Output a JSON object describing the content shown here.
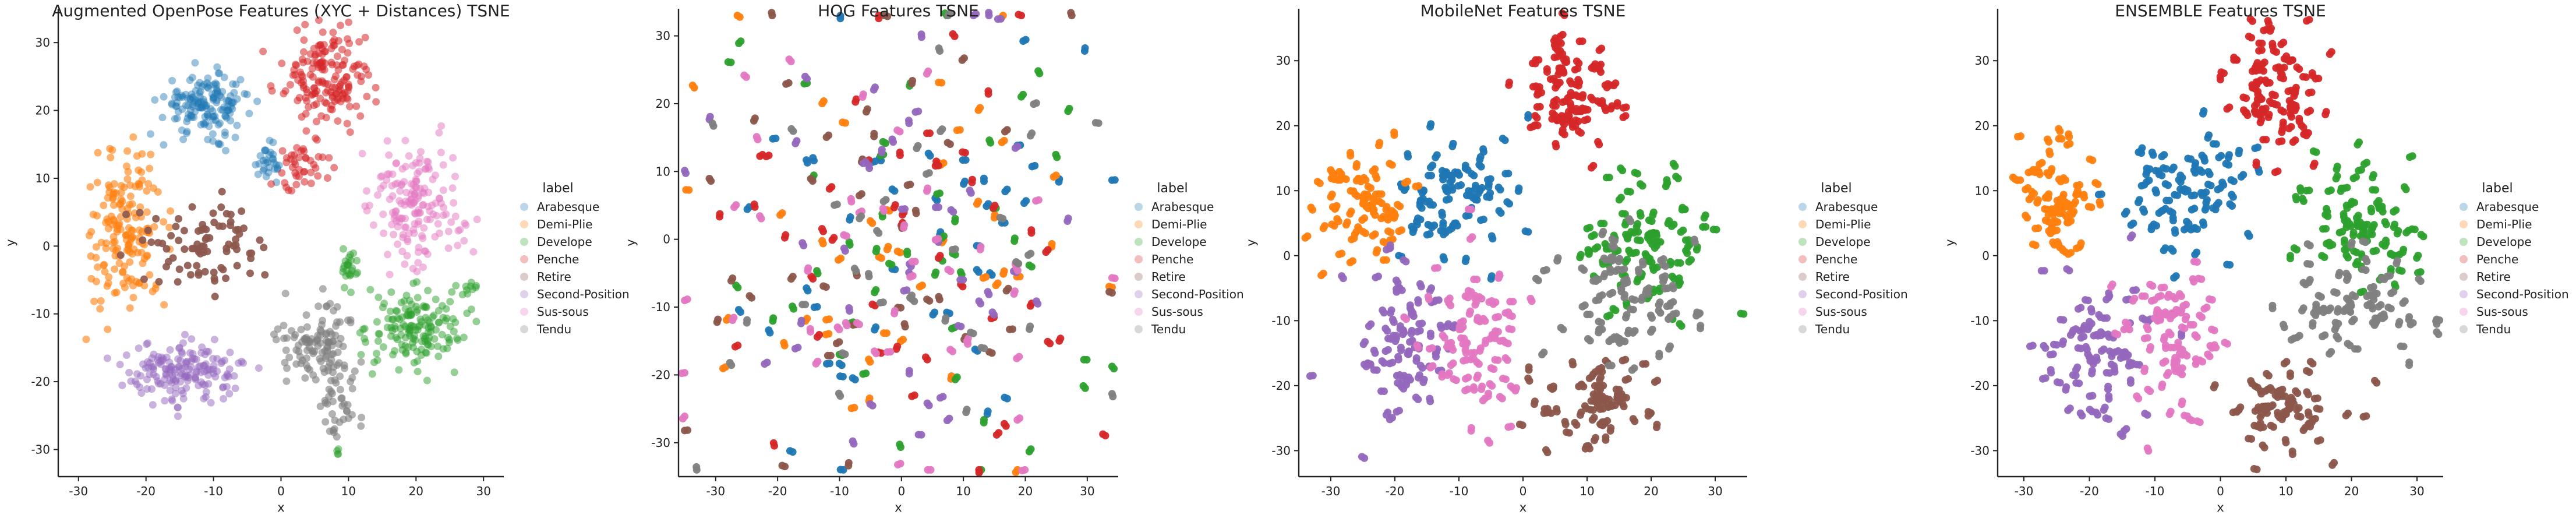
{
  "chart_data": [
    {
      "type": "scatter",
      "title": "Augmented OpenPose Features (XYC + Distances) TSNE",
      "xlabel": "x",
      "ylabel": "y",
      "xlim": [
        -33,
        33
      ],
      "ylim": [
        -34,
        35
      ],
      "xticks": [
        -30,
        -20,
        -10,
        0,
        10,
        20,
        30
      ],
      "yticks": [
        -30,
        -20,
        -10,
        0,
        10,
        20,
        30
      ],
      "legend_title": "label",
      "legend_position": "right",
      "series": [
        {
          "name": "Arabesque",
          "color": "#1f77b4",
          "alpha": 0.45,
          "clusters": [
            {
              "cx": -11,
              "cy": 21,
              "sx": 3.2,
              "sy": 2.2,
              "n": 160
            },
            {
              "cx": -2,
              "cy": 12,
              "sx": 0.8,
              "sy": 1.4,
              "n": 30
            }
          ]
        },
        {
          "name": "Demi-Plie",
          "color": "#ff7f0e",
          "alpha": 0.6,
          "clusters": [
            {
              "cx": -23,
              "cy": 2,
              "sx": 3.0,
              "sy": 5.5,
              "n": 170
            }
          ]
        },
        {
          "name": "Develope",
          "color": "#2ca02c",
          "alpha": 0.5,
          "clusters": [
            {
              "cx": 20,
              "cy": -12,
              "sx": 3.5,
              "sy": 3.0,
              "n": 160
            },
            {
              "cx": 10,
              "cy": -3,
              "sx": 0.7,
              "sy": 1.3,
              "n": 25
            },
            {
              "cx": 28,
              "cy": -6,
              "sx": 1.2,
              "sy": 0.5,
              "n": 8
            },
            {
              "cx": 8,
              "cy": -30.5,
              "sx": 0.5,
              "sy": 0.3,
              "n": 4
            }
          ]
        },
        {
          "name": "Penche",
          "color": "#d62728",
          "alpha": 0.55,
          "clusters": [
            {
              "cx": 7,
              "cy": 25,
              "sx": 3.3,
              "sy": 4.0,
              "n": 170
            },
            {
              "cx": 3,
              "cy": 12,
              "sx": 2.0,
              "sy": 2.0,
              "n": 40
            }
          ]
        },
        {
          "name": "Retire",
          "color": "#8c564b",
          "alpha": 0.9,
          "clusters": [
            {
              "cx": -11,
              "cy": 0,
              "sx": 4.0,
              "sy": 3.0,
              "n": 85
            }
          ]
        },
        {
          "name": "Second-Position",
          "color": "#9467bd",
          "alpha": 0.5,
          "clusters": [
            {
              "cx": -14,
              "cy": -18.5,
              "sx": 4.3,
              "sy": 2.2,
              "n": 170
            }
          ]
        },
        {
          "name": "Sus-sous",
          "color": "#e377c2",
          "alpha": 0.5,
          "clusters": [
            {
              "cx": 20,
              "cy": 6,
              "sx": 3.5,
              "sy": 4.5,
              "n": 170
            }
          ]
        },
        {
          "name": "Tendu",
          "color": "#7f7f7f",
          "alpha": 0.6,
          "clusters": [
            {
              "cx": 5,
              "cy": -14,
              "sx": 3.0,
              "sy": 3.0,
              "n": 110
            },
            {
              "cx": 9,
              "cy": -23,
              "sx": 1.5,
              "sy": 3.0,
              "n": 40
            }
          ]
        }
      ]
    },
    {
      "type": "scatter",
      "title": "HOG Features TSNE",
      "xlabel": "x",
      "ylabel": "y",
      "xlim": [
        -36,
        35
      ],
      "ylim": [
        -35,
        34
      ],
      "xticks": [
        -30,
        -20,
        -10,
        0,
        10,
        20,
        30
      ],
      "yticks": [
        -30,
        -20,
        -10,
        0,
        10,
        20,
        30
      ],
      "legend_title": "label",
      "legend_position": "right",
      "series": [
        {
          "name": "Arabesque",
          "color": "#1f77b4",
          "alpha": 0.95,
          "clusters": [
            {
              "cx": 0,
              "cy": 0,
              "sx": 15,
              "sy": 17,
              "n": 45
            }
          ]
        },
        {
          "name": "Demi-Plie",
          "color": "#ff7f0e",
          "alpha": 0.95,
          "clusters": [
            {
              "cx": 0,
              "cy": 0,
              "sx": 17,
              "sy": 17,
              "n": 45
            }
          ]
        },
        {
          "name": "Develope",
          "color": "#2ca02c",
          "alpha": 0.95,
          "clusters": [
            {
              "cx": 0,
              "cy": 0,
              "sx": 16,
              "sy": 17,
              "n": 45
            }
          ]
        },
        {
          "name": "Penche",
          "color": "#d62728",
          "alpha": 0.95,
          "clusters": [
            {
              "cx": 0,
              "cy": 0,
              "sx": 15,
              "sy": 17,
              "n": 45
            }
          ]
        },
        {
          "name": "Retire",
          "color": "#8c564b",
          "alpha": 0.95,
          "clusters": [
            {
              "cx": 0,
              "cy": 0,
              "sx": 16,
              "sy": 17,
              "n": 40
            }
          ]
        },
        {
          "name": "Second-Position",
          "color": "#9467bd",
          "alpha": 0.95,
          "clusters": [
            {
              "cx": 0,
              "cy": 0,
              "sx": 16,
              "sy": 17,
              "n": 45
            }
          ]
        },
        {
          "name": "Sus-sous",
          "color": "#e377c2",
          "alpha": 0.95,
          "clusters": [
            {
              "cx": 0,
              "cy": 0,
              "sx": 16,
              "sy": 17,
              "n": 45
            }
          ]
        },
        {
          "name": "Tendu",
          "color": "#7f7f7f",
          "alpha": 0.95,
          "clusters": [
            {
              "cx": 0,
              "cy": 0,
              "sx": 16,
              "sy": 17,
              "n": 35
            }
          ]
        }
      ]
    },
    {
      "type": "scatter",
      "title": "MobileNet Features TSNE",
      "xlabel": "x",
      "ylabel": "y",
      "xlim": [
        -35,
        35
      ],
      "ylim": [
        -34,
        38
      ],
      "xticks": [
        -30,
        -20,
        -10,
        0,
        10,
        20,
        30
      ],
      "yticks": [
        -30,
        -20,
        -10,
        0,
        10,
        20,
        30
      ],
      "legend_title": "label",
      "legend_position": "right",
      "series": [
        {
          "name": "Arabesque",
          "color": "#1f77b4",
          "alpha": 0.95,
          "clusters": [
            {
              "cx": -10,
              "cy": 10,
              "sx": 4.5,
              "sy": 5.0,
              "n": 75
            }
          ]
        },
        {
          "name": "Demi-Plie",
          "color": "#ff7f0e",
          "alpha": 0.95,
          "clusters": [
            {
              "cx": -25,
              "cy": 8,
              "sx": 3.5,
              "sy": 5.5,
              "n": 70
            }
          ]
        },
        {
          "name": "Develope",
          "color": "#2ca02c",
          "alpha": 0.95,
          "clusters": [
            {
              "cx": 20,
              "cy": 3,
              "sx": 5.0,
              "sy": 5.0,
              "n": 85
            }
          ]
        },
        {
          "name": "Penche",
          "color": "#d62728",
          "alpha": 0.95,
          "clusters": [
            {
              "cx": 7,
              "cy": 25,
              "sx": 3.5,
              "sy": 4.5,
              "n": 85
            }
          ]
        },
        {
          "name": "Retire",
          "color": "#8c564b",
          "alpha": 0.95,
          "clusters": [
            {
              "cx": 12,
              "cy": -23,
              "sx": 5.0,
              "sy": 4.0,
              "n": 65
            }
          ]
        },
        {
          "name": "Second-Position",
          "color": "#9467bd",
          "alpha": 0.95,
          "clusters": [
            {
              "cx": -18,
              "cy": -14,
              "sx": 4.5,
              "sy": 6.0,
              "n": 75
            }
          ]
        },
        {
          "name": "Sus-sous",
          "color": "#e377c2",
          "alpha": 0.95,
          "clusters": [
            {
              "cx": -7,
              "cy": -13,
              "sx": 4.0,
              "sy": 6.0,
              "n": 75
            }
          ]
        },
        {
          "name": "Tendu",
          "color": "#7f7f7f",
          "alpha": 0.95,
          "clusters": [
            {
              "cx": 16,
              "cy": -6,
              "sx": 6.0,
              "sy": 5.0,
              "n": 70
            }
          ]
        }
      ]
    },
    {
      "type": "scatter",
      "title": "ENSEMBLE Features TSNE",
      "xlabel": "x",
      "ylabel": "y",
      "xlim": [
        -34,
        34
      ],
      "ylim": [
        -34,
        38
      ],
      "xticks": [
        -30,
        -20,
        -10,
        0,
        10,
        20,
        30
      ],
      "yticks": [
        -30,
        -20,
        -10,
        0,
        10,
        20,
        30
      ],
      "legend_title": "label",
      "legend_position": "right",
      "series": [
        {
          "name": "Arabesque",
          "color": "#1f77b4",
          "alpha": 0.95,
          "clusters": [
            {
              "cx": -5,
              "cy": 10,
              "sx": 4.5,
              "sy": 5.0,
              "n": 75
            }
          ]
        },
        {
          "name": "Demi-Plie",
          "color": "#ff7f0e",
          "alpha": 0.95,
          "clusters": [
            {
              "cx": -25,
              "cy": 9,
              "sx": 3.5,
              "sy": 5.0,
              "n": 70
            }
          ]
        },
        {
          "name": "Develope",
          "color": "#2ca02c",
          "alpha": 0.95,
          "clusters": [
            {
              "cx": 22,
              "cy": 5,
              "sx": 5.0,
              "sy": 4.5,
              "n": 80
            }
          ]
        },
        {
          "name": "Penche",
          "color": "#d62728",
          "alpha": 0.95,
          "clusters": [
            {
              "cx": 8,
              "cy": 26,
              "sx": 3.5,
              "sy": 4.5,
              "n": 85
            }
          ]
        },
        {
          "name": "Retire",
          "color": "#8c564b",
          "alpha": 0.95,
          "clusters": [
            {
              "cx": 10,
              "cy": -24,
              "sx": 4.5,
              "sy": 3.5,
              "n": 60
            }
          ]
        },
        {
          "name": "Second-Position",
          "color": "#9467bd",
          "alpha": 0.95,
          "clusters": [
            {
              "cx": -19,
              "cy": -14,
              "sx": 4.5,
              "sy": 6.0,
              "n": 75
            }
          ]
        },
        {
          "name": "Sus-sous",
          "color": "#e377c2",
          "alpha": 0.95,
          "clusters": [
            {
              "cx": -7,
              "cy": -14,
              "sx": 4.0,
              "sy": 6.0,
              "n": 75
            }
          ]
        },
        {
          "name": "Tendu",
          "color": "#7f7f7f",
          "alpha": 0.95,
          "clusters": [
            {
              "cx": 20,
              "cy": -8,
              "sx": 6.0,
              "sy": 4.5,
              "n": 70
            }
          ]
        }
      ]
    }
  ]
}
